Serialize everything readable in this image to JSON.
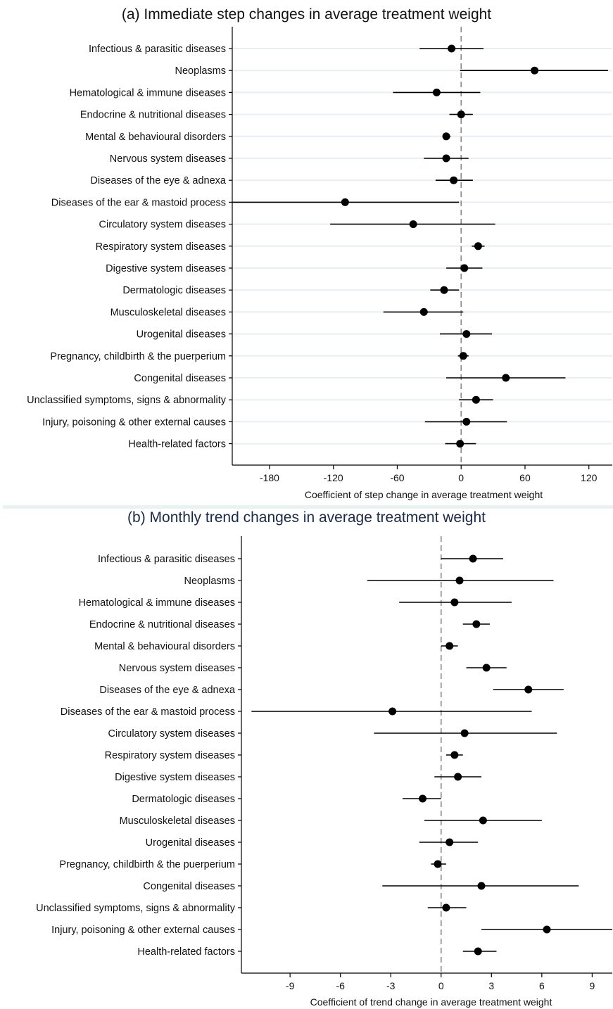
{
  "chart_data": [
    {
      "type": "scatter",
      "subtype": "coefficient-plot",
      "title": "(a) Immediate step changes in average treatment weight",
      "xlabel": "Coefficient of step change in average treatment weight",
      "xlim": [
        -215,
        142
      ],
      "xticks": [
        -180,
        -120,
        -60,
        0,
        60,
        120
      ],
      "xtick_labels": [
        "-180",
        "-120",
        "-60",
        "0",
        "60",
        "120"
      ],
      "reference_line": 0,
      "grid": "horizontal",
      "categories": [
        "Infectious & parasitic diseases",
        "Neoplasms",
        "Hematological & immune diseases",
        "Endocrine & nutritional diseases",
        "Mental & behavioural disorders",
        "Nervous system diseases",
        "Diseases of the eye & adnexa",
        "Diseases of the ear & mastoid process",
        "Circulatory system diseases",
        "Respiratory system diseases",
        "Digestive system diseases",
        "Dermatologic diseases",
        "Musculoskeletal diseases",
        "Urogenital diseases",
        "Pregnancy, childbirth & the puerperium",
        "Congenital diseases",
        "Unclassified symptoms, signs & abnormality",
        "Injury, poisoning & other external causes",
        "Health-related factors"
      ],
      "estimates": [
        -9,
        69,
        -23,
        0,
        -14,
        -14,
        -7,
        -109,
        -45,
        16,
        3,
        -16,
        -35,
        5,
        2,
        42,
        14,
        5,
        -1
      ],
      "ci_low": [
        -39,
        -1,
        -64,
        -11,
        -17,
        -35,
        -24,
        -216,
        -123,
        10,
        -14,
        -29,
        -73,
        -20,
        -3,
        -14,
        -2,
        -34,
        -15
      ],
      "ci_high": [
        21,
        138,
        18,
        11,
        -10,
        7,
        11,
        -2,
        32,
        22,
        20,
        -2,
        2,
        29,
        7,
        98,
        30,
        43,
        14
      ]
    },
    {
      "type": "scatter",
      "subtype": "coefficient-plot",
      "title": "(b) Monthly trend changes in average treatment weight",
      "xlabel": "Coefficient of trend change in average treatment weight",
      "xlim": [
        -11.9,
        10.2
      ],
      "xticks": [
        -9,
        -6,
        -3,
        0,
        3,
        6,
        9
      ],
      "xtick_labels": [
        "-9",
        "-6",
        "-3",
        "0",
        "3",
        "6",
        "9"
      ],
      "reference_line": 0,
      "grid": "none",
      "categories": [
        "Infectious & parasitic diseases",
        "Neoplasms",
        "Hematological & immune diseases",
        "Endocrine & nutritional diseases",
        "Mental & behavioural disorders",
        "Nervous system diseases",
        "Diseases of the eye & adnexa",
        "Diseases of the ear & mastoid process",
        "Circulatory system diseases",
        "Respiratory system diseases",
        "Digestive system diseases",
        "Dermatologic diseases",
        "Musculoskeletal diseases",
        "Urogenital diseases",
        "Pregnancy, childbirth & the puerperium",
        "Congenital diseases",
        "Unclassified symptoms, signs & abnormality",
        "Injury, poisoning & other external causes",
        "Health-related factors"
      ],
      "estimates": [
        1.9,
        1.1,
        0.8,
        2.1,
        0.5,
        2.7,
        5.2,
        -2.9,
        1.4,
        0.8,
        1.0,
        -1.1,
        2.5,
        0.5,
        -0.2,
        2.4,
        0.3,
        6.3,
        2.2
      ],
      "ci_low": [
        0.0,
        -4.4,
        -2.5,
        1.3,
        0.0,
        1.5,
        3.1,
        -11.3,
        -4.0,
        0.3,
        -0.4,
        -2.3,
        -1.0,
        -1.3,
        -0.6,
        -3.5,
        -0.8,
        2.4,
        1.3
      ],
      "ci_high": [
        3.7,
        6.7,
        4.2,
        2.9,
        1.0,
        3.9,
        7.3,
        5.4,
        6.9,
        1.3,
        2.4,
        0.0,
        6.0,
        2.2,
        0.3,
        8.2,
        1.5,
        10.3,
        3.3
      ]
    }
  ]
}
